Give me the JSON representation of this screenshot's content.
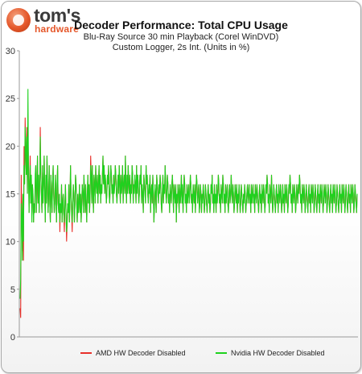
{
  "brand": {
    "name": "tom's",
    "sub": "hardware"
  },
  "chart_data": {
    "type": "line",
    "title": "Decoder Performance: Total CPU Usage",
    "subtitle_lines": [
      "Blu-Ray Source 30 min Playback (Corel WinDVD)",
      "Custom Logger, 2s Int. (Units in %)"
    ],
    "ylim": [
      0,
      30
    ],
    "yticks": [
      0,
      5,
      10,
      15,
      20,
      25,
      30
    ],
    "grid": false,
    "legend_position": "bottom",
    "series": [
      {
        "name": "AMD HW Decoder Disabled",
        "color": "#e8302a",
        "values": [
          3,
          2,
          17,
          13,
          9,
          15,
          8,
          20,
          16,
          23,
          19,
          17,
          22,
          15,
          21,
          18,
          13,
          16,
          19,
          14,
          17,
          13,
          16,
          15,
          12,
          14,
          13,
          16,
          18,
          13,
          15,
          19,
          14,
          17,
          13,
          16,
          22,
          17,
          15,
          13,
          18,
          14,
          16,
          19,
          15,
          12,
          17,
          14,
          19,
          16,
          13,
          15,
          18,
          14,
          12,
          17,
          15,
          13,
          16,
          18,
          15,
          13,
          14,
          17,
          15,
          12,
          16,
          18,
          14,
          13,
          15,
          11,
          14,
          13,
          16,
          12,
          14,
          15,
          13,
          11,
          14,
          16,
          13,
          10,
          12,
          14,
          13,
          16,
          12,
          14,
          18,
          15,
          13,
          11,
          14,
          16,
          15,
          12,
          14,
          17,
          16,
          14,
          12,
          15,
          13,
          14,
          16,
          13,
          15,
          12,
          14,
          16,
          15,
          13,
          17,
          15,
          13,
          16,
          14,
          12,
          15,
          17,
          14,
          16,
          13,
          15,
          19,
          17,
          14,
          18,
          15,
          13,
          17,
          16,
          14,
          18,
          16,
          15,
          17,
          14,
          16,
          18,
          15,
          17,
          14,
          16,
          15,
          17,
          19,
          16,
          18,
          15,
          17,
          16,
          14,
          15,
          17,
          16,
          18,
          15,
          14,
          16,
          18,
          17,
          15,
          16,
          14,
          17,
          15,
          16,
          18,
          17,
          15,
          14,
          16,
          17,
          15,
          18,
          16,
          14,
          17,
          15,
          16,
          18,
          14,
          16,
          17,
          15,
          19,
          16,
          14,
          17,
          15,
          18,
          16,
          15,
          17,
          14,
          16,
          15,
          18,
          17,
          14,
          16,
          15,
          17,
          16,
          14,
          18,
          15,
          17,
          16,
          14,
          15,
          17,
          16,
          18,
          14,
          16,
          15,
          13,
          17,
          16,
          15,
          14,
          18,
          16,
          17,
          15,
          14,
          16,
          15,
          17,
          13,
          15,
          16,
          14,
          17,
          15,
          12,
          14,
          16,
          15,
          13,
          17,
          16,
          15,
          14,
          16,
          15,
          17,
          16,
          14,
          13,
          15,
          17,
          14,
          16,
          15,
          18,
          16,
          14,
          15,
          17,
          16,
          14,
          15,
          13,
          16,
          15,
          14,
          16,
          17,
          15,
          13,
          16,
          15,
          14,
          16,
          12,
          15,
          14,
          16,
          15,
          13,
          16,
          14,
          15,
          17,
          14,
          16,
          13,
          15,
          17,
          16,
          14,
          15,
          13,
          16,
          14,
          15,
          16,
          14,
          15,
          17,
          16,
          14,
          15,
          13,
          16,
          15,
          14,
          16,
          13,
          15,
          17,
          16,
          14,
          15,
          16,
          13,
          14,
          16,
          15,
          13,
          15,
          14,
          16,
          15,
          13,
          14,
          16,
          15,
          14,
          13,
          15,
          16,
          14,
          15,
          13,
          14,
          16,
          15,
          17,
          14,
          15,
          13,
          16,
          14,
          15,
          13,
          16,
          14,
          15,
          17,
          16,
          14,
          15,
          13,
          16,
          15,
          14,
          17,
          16,
          14,
          15,
          13,
          16,
          14,
          15,
          16,
          14,
          13,
          15,
          16,
          14,
          15,
          17,
          15,
          14,
          16,
          15,
          13,
          14,
          16,
          15,
          14,
          16,
          13,
          15,
          14,
          16,
          15,
          13,
          14,
          16,
          15,
          14,
          13,
          15,
          14,
          16,
          15,
          13,
          14,
          15,
          16,
          14,
          15,
          16,
          14,
          15,
          13,
          16,
          14,
          15,
          16,
          14,
          15,
          13,
          16,
          15,
          14,
          16,
          15,
          14,
          13,
          15,
          16,
          14,
          15,
          13,
          16,
          15,
          14,
          16,
          15,
          13,
          14,
          16,
          15,
          17,
          16,
          14,
          15,
          13,
          16,
          15,
          14,
          17,
          15,
          13,
          14,
          16,
          15,
          14,
          13,
          15,
          16,
          14,
          15,
          13,
          16,
          15,
          14,
          16,
          15,
          13,
          14,
          16,
          14,
          15,
          13,
          16,
          15,
          14,
          16,
          15,
          13,
          14,
          16,
          15,
          17,
          16,
          14,
          15,
          13,
          16,
          15,
          14,
          16,
          15,
          13,
          14,
          16,
          15,
          14,
          16,
          15,
          17,
          16,
          14,
          15,
          13,
          16,
          15,
          14,
          16,
          15,
          13,
          14,
          16,
          15,
          14,
          13,
          15,
          16,
          14,
          15,
          13,
          16,
          15,
          14,
          16,
          15,
          13,
          14,
          16,
          15,
          14,
          13,
          15,
          16,
          14,
          15,
          13,
          16,
          15,
          14,
          16,
          15,
          13,
          14,
          16,
          15,
          14,
          16,
          15,
          13,
          14,
          16,
          15,
          14,
          13,
          15,
          16,
          14,
          15,
          13,
          16,
          15,
          14,
          16,
          15,
          13,
          14,
          16,
          15,
          14,
          13,
          15,
          16,
          14,
          15,
          13,
          16,
          15,
          14,
          16,
          15,
          13,
          14,
          16,
          15,
          14,
          13,
          15,
          16,
          14,
          15,
          13,
          16,
          15,
          14,
          16,
          15,
          13,
          14,
          16,
          15,
          14,
          13,
          15
        ]
      },
      {
        "name": "Nvidia HW Decoder Disabled",
        "color": "#1ed21e",
        "values": [
          4,
          6,
          14,
          13,
          8,
          15,
          10,
          18,
          16,
          22,
          20,
          17,
          21,
          15,
          26,
          17,
          13,
          16,
          18,
          14,
          17,
          12,
          16,
          15,
          12,
          14,
          13,
          17,
          18,
          13,
          16,
          19,
          14,
          17,
          13,
          16,
          21,
          17,
          15,
          13,
          18,
          14,
          16,
          19,
          15,
          12,
          17,
          14,
          19,
          16,
          13,
          15,
          18,
          14,
          12,
          17,
          15,
          13,
          16,
          18,
          15,
          13,
          14,
          17,
          15,
          12,
          16,
          18,
          14,
          13,
          15,
          12,
          14,
          13,
          16,
          12,
          14,
          15,
          13,
          12,
          14,
          16,
          13,
          11,
          12,
          14,
          13,
          16,
          12,
          14,
          18,
          15,
          13,
          12,
          14,
          16,
          15,
          12,
          14,
          17,
          16,
          14,
          12,
          15,
          13,
          14,
          16,
          13,
          15,
          12,
          14,
          16,
          15,
          13,
          17,
          15,
          13,
          16,
          14,
          12,
          15,
          17,
          14,
          16,
          13,
          15,
          18,
          17,
          14,
          18,
          15,
          13,
          17,
          16,
          14,
          18,
          16,
          15,
          17,
          14,
          16,
          18,
          15,
          17,
          14,
          16,
          15,
          17,
          19,
          16,
          18,
          15,
          17,
          16,
          14,
          15,
          17,
          16,
          18,
          15,
          14,
          16,
          18,
          17,
          15,
          16,
          14,
          17,
          15,
          16,
          18,
          17,
          15,
          14,
          16,
          17,
          15,
          18,
          16,
          14,
          17,
          15,
          16,
          18,
          14,
          16,
          17,
          15,
          19,
          16,
          14,
          17,
          15,
          18,
          16,
          15,
          17,
          14,
          16,
          15,
          18,
          17,
          14,
          16,
          15,
          17,
          16,
          14,
          18,
          15,
          17,
          16,
          14,
          15,
          17,
          16,
          18,
          14,
          16,
          15,
          13,
          17,
          16,
          15,
          14,
          18,
          16,
          17,
          15,
          14,
          16,
          15,
          17,
          13,
          15,
          16,
          14,
          17,
          15,
          12,
          14,
          16,
          15,
          13,
          17,
          16,
          15,
          14,
          16,
          15,
          17,
          16,
          14,
          13,
          15,
          17,
          14,
          16,
          15,
          18,
          16,
          14,
          15,
          17,
          16,
          14,
          15,
          13,
          16,
          15,
          14,
          16,
          17,
          15,
          13,
          16,
          15,
          14,
          16,
          12,
          15,
          14,
          16,
          15,
          13,
          16,
          14,
          15,
          17,
          14,
          16,
          13,
          15,
          17,
          16,
          14,
          15,
          13,
          16,
          14,
          15,
          16,
          14,
          15,
          17,
          16,
          14,
          15,
          13,
          16,
          15,
          14,
          16,
          13,
          15,
          17,
          16,
          14,
          15,
          16,
          13,
          14,
          16,
          15,
          13,
          15,
          14,
          16,
          15,
          13,
          14,
          16,
          15,
          14,
          13,
          15,
          16,
          14,
          15,
          13,
          14,
          16,
          15,
          17,
          14,
          15,
          13,
          16,
          14,
          15,
          13,
          16,
          14,
          15,
          17,
          16,
          14,
          15,
          13,
          16,
          15,
          14,
          17,
          16,
          14,
          15,
          13,
          16,
          14,
          15,
          16,
          14,
          13,
          15,
          16,
          14,
          15,
          17,
          15,
          14,
          16,
          15,
          13,
          14,
          16,
          15,
          14,
          16,
          13,
          15,
          14,
          16,
          15,
          13,
          14,
          16,
          15,
          14,
          13,
          15,
          14,
          16,
          15,
          13,
          14,
          15,
          16,
          14,
          15,
          16,
          14,
          15,
          13,
          16,
          14,
          15,
          16,
          14,
          15,
          13,
          16,
          15,
          14,
          16,
          15,
          14,
          13,
          15,
          16,
          14,
          15,
          13,
          16,
          15,
          14,
          16,
          15,
          13,
          14,
          16,
          15,
          17,
          16,
          14,
          15,
          13,
          16,
          15,
          14,
          17,
          15,
          13,
          14,
          16,
          15,
          14,
          13,
          15,
          16,
          14,
          15,
          13,
          16,
          15,
          14,
          16,
          15,
          13,
          14,
          16,
          14,
          15,
          13,
          16,
          15,
          14,
          16,
          15,
          13,
          14,
          16,
          15,
          17,
          16,
          14,
          15,
          13,
          16,
          15,
          14,
          16,
          15,
          13,
          14,
          16,
          15,
          14,
          16,
          15,
          17,
          16,
          14,
          15,
          13,
          16,
          15,
          14,
          16,
          15,
          13,
          14,
          16,
          15,
          14,
          13,
          15,
          16,
          14,
          15,
          13,
          16,
          15,
          14,
          16,
          15,
          13,
          14,
          16,
          15,
          14,
          13,
          15,
          16,
          14,
          15,
          13,
          16,
          15,
          14,
          16,
          15,
          13,
          14,
          16,
          15,
          14,
          16,
          15,
          13,
          14,
          16,
          15,
          14,
          13,
          15,
          16,
          14,
          15,
          13,
          16,
          15,
          14,
          16,
          15,
          13,
          14,
          16,
          15,
          14,
          13,
          15,
          16,
          14,
          15,
          13,
          16,
          15,
          14,
          16,
          15,
          13,
          14,
          16,
          15,
          14,
          13,
          15,
          16,
          14,
          15,
          13,
          16,
          15,
          14,
          16,
          15,
          13,
          14,
          16,
          15,
          14,
          13,
          15
        ]
      }
    ]
  }
}
